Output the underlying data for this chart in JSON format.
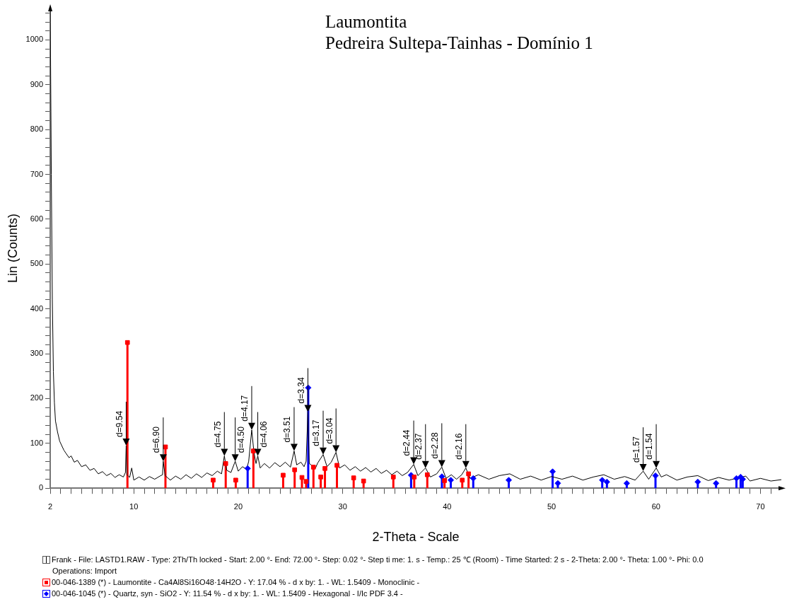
{
  "chart_data": {
    "type": "line",
    "title": "Laumontita",
    "subtitle": "Pedreira Sultepa-Tainhas - Domínio 1",
    "xlabel": "2-Theta - Scale",
    "ylabel": "Lin (Counts)",
    "legend": "bottom",
    "grid": false,
    "xlim": [
      2,
      72
    ],
    "ylim": [
      0,
      1070
    ],
    "xticks": [
      2,
      {
        "value": 3,
        "label": null
      },
      {
        "value": 4,
        "label": null
      },
      {
        "value": 5,
        "label": null
      },
      {
        "value": 6,
        "label": null
      },
      {
        "value": 7,
        "label": null
      },
      {
        "value": 8,
        "label": null
      },
      {
        "value": 9,
        "label": null
      },
      10,
      {
        "value": 11,
        "label": null
      },
      {
        "value": 12,
        "label": null
      },
      {
        "value": 13,
        "label": null
      },
      {
        "value": 14,
        "label": null
      },
      {
        "value": 15,
        "label": null
      },
      {
        "value": 16,
        "label": null
      },
      {
        "value": 17,
        "label": null
      },
      {
        "value": 18,
        "label": null
      },
      {
        "value": 19,
        "label": null
      },
      20,
      {
        "value": 21,
        "label": null
      },
      {
        "value": 22,
        "label": null
      },
      {
        "value": 23,
        "label": null
      },
      {
        "value": 24,
        "label": null
      },
      {
        "value": 25,
        "label": null
      },
      {
        "value": 26,
        "label": null
      },
      {
        "value": 27,
        "label": null
      },
      {
        "value": 28,
        "label": null
      },
      {
        "value": 29,
        "label": null
      },
      30,
      {
        "value": 31,
        "label": null
      },
      {
        "value": 32,
        "label": null
      },
      {
        "value": 33,
        "label": null
      },
      {
        "value": 34,
        "label": null
      },
      {
        "value": 35,
        "label": null
      },
      {
        "value": 36,
        "label": null
      },
      {
        "value": 37,
        "label": null
      },
      {
        "value": 38,
        "label": null
      },
      {
        "value": 39,
        "label": null
      },
      40,
      {
        "value": 41,
        "label": null
      },
      {
        "value": 42,
        "label": null
      },
      {
        "value": 43,
        "label": null
      },
      {
        "value": 44,
        "label": null
      },
      {
        "value": 45,
        "label": null
      },
      {
        "value": 46,
        "label": null
      },
      {
        "value": 47,
        "label": null
      },
      {
        "value": 48,
        "label": null
      },
      {
        "value": 49,
        "label": null
      },
      50,
      {
        "value": 51,
        "label": null
      },
      {
        "value": 52,
        "label": null
      },
      {
        "value": 53,
        "label": null
      },
      {
        "value": 54,
        "label": null
      },
      {
        "value": 55,
        "label": null
      },
      {
        "value": 56,
        "label": null
      },
      {
        "value": 57,
        "label": null
      },
      {
        "value": 58,
        "label": null
      },
      {
        "value": 59,
        "label": null
      },
      60,
      {
        "value": 61,
        "label": null
      },
      {
        "value": 62,
        "label": null
      },
      {
        "value": 63,
        "label": null
      },
      {
        "value": 64,
        "label": null
      },
      {
        "value": 65,
        "label": null
      },
      {
        "value": 66,
        "label": null
      },
      {
        "value": 67,
        "label": null
      },
      {
        "value": 68,
        "label": null
      },
      {
        "value": 69,
        "label": null
      },
      70,
      {
        "value": 71,
        "label": null
      }
    ],
    "yticks": [
      0,
      {
        "value": 20,
        "label": null
      },
      {
        "value": 40,
        "label": null
      },
      {
        "value": 60,
        "label": null
      },
      {
        "value": 80,
        "label": null
      },
      100,
      {
        "value": 120,
        "label": null
      },
      {
        "value": 140,
        "label": null
      },
      {
        "value": 160,
        "label": null
      },
      {
        "value": 180,
        "label": null
      },
      200,
      {
        "value": 220,
        "label": null
      },
      {
        "value": 240,
        "label": null
      },
      {
        "value": 260,
        "label": null
      },
      {
        "value": 280,
        "label": null
      },
      300,
      {
        "value": 320,
        "label": null
      },
      {
        "value": 340,
        "label": null
      },
      {
        "value": 360,
        "label": null
      },
      {
        "value": 380,
        "label": null
      },
      400,
      {
        "value": 420,
        "label": null
      },
      {
        "value": 440,
        "label": null
      },
      {
        "value": 460,
        "label": null
      },
      {
        "value": 480,
        "label": null
      },
      500,
      {
        "value": 520,
        "label": null
      },
      {
        "value": 540,
        "label": null
      },
      {
        "value": 560,
        "label": null
      },
      {
        "value": 580,
        "label": null
      },
      600,
      {
        "value": 620,
        "label": null
      },
      {
        "value": 640,
        "label": null
      },
      {
        "value": 660,
        "label": null
      },
      {
        "value": 680,
        "label": null
      },
      700,
      {
        "value": 720,
        "label": null
      },
      {
        "value": 740,
        "label": null
      },
      {
        "value": 760,
        "label": null
      },
      {
        "value": 780,
        "label": null
      },
      800,
      {
        "value": 820,
        "label": null
      },
      {
        "value": 840,
        "label": null
      },
      {
        "value": 860,
        "label": null
      },
      {
        "value": 880,
        "label": null
      },
      900,
      {
        "value": 920,
        "label": null
      },
      {
        "value": 940,
        "label": null
      },
      {
        "value": 960,
        "label": null
      },
      {
        "value": 980,
        "label": null
      },
      1000,
      {
        "value": 1020,
        "label": null
      },
      {
        "value": 1040,
        "label": null
      },
      {
        "value": 1060,
        "label": null
      }
    ],
    "annotations": [
      {
        "text": "d=9.54",
        "x": 9.27,
        "y": 95
      },
      {
        "text": "d=6.90",
        "x": 12.82,
        "y": 60
      },
      {
        "text": "d=4.75",
        "x": 18.67,
        "y": 72
      },
      {
        "text": "d=4.50",
        "x": 19.71,
        "y": 60
      },
      {
        "text": "d=4.17",
        "x": 21.29,
        "y": 130
      },
      {
        "text": "d=4.06",
        "x": 21.87,
        "y": 72
      },
      {
        "text": "d=3.51",
        "x": 25.35,
        "y": 83
      },
      {
        "text": "d=3.34",
        "x": 26.67,
        "y": 170
      },
      {
        "text": "d=3.17",
        "x": 28.13,
        "y": 75
      },
      {
        "text": "d=3.04",
        "x": 29.36,
        "y": 80
      },
      {
        "text": "d=2.44",
        "x": 36.8,
        "y": 53
      },
      {
        "text": "d=2.37",
        "x": 37.93,
        "y": 45
      },
      {
        "text": "d=2.28",
        "x": 39.49,
        "y": 47
      },
      {
        "text": "d=2.16",
        "x": 41.79,
        "y": 45
      },
      {
        "text": "d=1.57",
        "x": 58.77,
        "y": 38
      },
      {
        "text": "d=1.54",
        "x": 60.02,
        "y": 45
      },
      "Operations: Import"
    ],
    "series": [
      {
        "name": "Frank - File: LASTD1.RAW - Type: 2Th/Th locked - Start: 2.00 °- End: 72.00 °- Step: 0.02 °- Step ti me: 1. s - Temp.: 25 ℃ (Room) - Time Started: 2 s - 2-Theta: 2.00 °- Theta: 1.00 °- Phi: 0.0",
        "color": "#000000",
        "marker": "none",
        "x": [
          2.0,
          2.1,
          2.2,
          2.3,
          2.4,
          2.5,
          2.7,
          2.9,
          3.1,
          3.3,
          3.5,
          3.8,
          4.0,
          4.3,
          4.6,
          5.0,
          5.4,
          5.8,
          6.2,
          6.6,
          7.0,
          7.4,
          7.8,
          8.2,
          8.6,
          9.0,
          9.2,
          9.27,
          9.35,
          9.6,
          9.8,
          10.0,
          10.5,
          11.0,
          11.5,
          12.0,
          12.5,
          12.75,
          12.82,
          13.0,
          13.5,
          14.0,
          14.5,
          15.0,
          15.5,
          16.0,
          16.5,
          17.0,
          17.5,
          18.0,
          18.4,
          18.67,
          18.9,
          19.3,
          19.71,
          20.0,
          20.4,
          20.8,
          21.0,
          21.29,
          21.5,
          21.7,
          21.87,
          22.1,
          22.5,
          23.0,
          23.5,
          24.0,
          24.5,
          25.0,
          25.35,
          25.6,
          26.0,
          26.3,
          26.5,
          26.67,
          26.8,
          27.4,
          27.6,
          28.13,
          28.5,
          28.9,
          29.36,
          29.7,
          30.2,
          30.7,
          31.2,
          31.7,
          32.2,
          32.7,
          33.2,
          33.7,
          34.2,
          34.7,
          35.2,
          35.7,
          36.2,
          36.8,
          37.2,
          37.93,
          38.4,
          39.0,
          39.49,
          39.9,
          40.4,
          40.9,
          41.4,
          41.79,
          42.2,
          43.0,
          44.0,
          45.0,
          46.0,
          47.0,
          48.0,
          49.0,
          50.0,
          51.0,
          52.0,
          53.0,
          54.0,
          55.0,
          56.0,
          57.0,
          58.0,
          58.77,
          59.3,
          60.02,
          60.5,
          61.0,
          62.0,
          63.0,
          64.0,
          65.0,
          66.0,
          67.0,
          68.6,
          69.0,
          70.0,
          71.0,
          72.0
        ],
        "values": [
          1070,
          700,
          420,
          260,
          190,
          150,
          125,
          105,
          95,
          85,
          78,
          68,
          72,
          58,
          62,
          48,
          52,
          40,
          44,
          32,
          37,
          28,
          33,
          24,
          30,
          25,
          35,
          95,
          30,
          24,
          45,
          18,
          25,
          18,
          26,
          20,
          27,
          30,
          60,
          28,
          18,
          27,
          20,
          30,
          22,
          32,
          24,
          34,
          28,
          38,
          32,
          72,
          40,
          35,
          60,
          38,
          48,
          42,
          60,
          130,
          80,
          55,
          72,
          45,
          55,
          45,
          57,
          48,
          58,
          47,
          83,
          52,
          58,
          48,
          60,
          170,
          55,
          45,
          56,
          75,
          48,
          58,
          80,
          45,
          52,
          40,
          48,
          38,
          46,
          36,
          44,
          33,
          40,
          30,
          38,
          28,
          35,
          53,
          28,
          45,
          25,
          32,
          47,
          22,
          30,
          20,
          30,
          45,
          22,
          30,
          20,
          28,
          32,
          20,
          27,
          18,
          26,
          20,
          27,
          18,
          25,
          30,
          20,
          26,
          18,
          38,
          20,
          45,
          25,
          30,
          18,
          25,
          28,
          17,
          24,
          18,
          27,
          16,
          22,
          16,
          19
        ]
      },
      {
        "name": "00-046-1389 (*) - Laumontite - Ca4Al8Si16O48·14H2O - Y: 17.04 % - d x by: 1. - WL: 1.5409 - Monoclinic -",
        "type": "lollipop",
        "color": "#ff0000",
        "marker": "square",
        "x": [
          9.39,
          13.03,
          17.6,
          18.8,
          19.76,
          21.45,
          24.3,
          25.4,
          26.1,
          26.5,
          27.2,
          27.9,
          28.3,
          29.45,
          31.05,
          32.0,
          34.85,
          36.85,
          38.1,
          39.75,
          41.45,
          42.05
        ],
        "values": [
          325,
          92,
          18,
          55,
          18,
          83,
          29,
          41,
          24,
          15,
          47,
          25,
          44,
          51,
          23,
          16,
          25,
          25,
          30,
          17,
          18,
          32
        ]
      },
      {
        "name": "00-046-1045 (*) - Quartz, syn - SiO2 - Y: 11.54 % - d x by: 1. - WL: 1.5409 - Hexagonal - I/Ic PDF 3.4 -",
        "type": "lollipop",
        "color": "#0000ff",
        "marker": "diamond",
        "x": [
          20.9,
          26.7,
          36.55,
          39.5,
          40.35,
          42.5,
          45.9,
          50.1,
          50.6,
          54.85,
          55.3,
          57.2,
          59.95,
          64.0,
          65.75,
          67.7,
          68.1,
          68.3
        ],
        "values": [
          44,
          224,
          29,
          26,
          18,
          22,
          18,
          37,
          11,
          18,
          14,
          11,
          28,
          14,
          11,
          22,
          25,
          20
        ]
      }
    ]
  }
}
